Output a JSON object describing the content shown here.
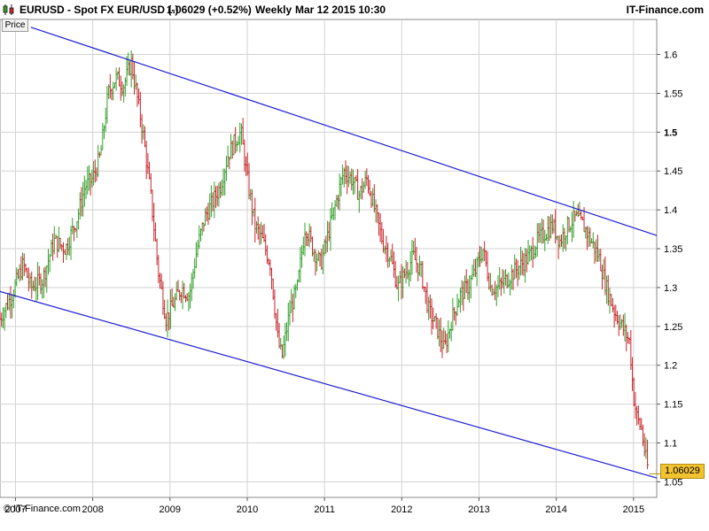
{
  "header": {
    "symbol": "EURUSD - Spot FX EUR/USD (-)",
    "price_change": "1.06029 (+0.52%)",
    "period": "Weekly",
    "datetime": "Mar 12 2015 10:30",
    "brand": "IT-Finance.com",
    "logo_icon": "candlestick-icon"
  },
  "price_button": "Price",
  "copyright": "© IT-Finance.com",
  "last_price_badge": "1.06029",
  "colors": {
    "up": "#34a02c",
    "down": "#c8262b",
    "channel": "#1f1fd4",
    "grid": "#d3d3d3",
    "badge": "#f2c230"
  },
  "chart_data": {
    "type": "ohlc",
    "title": "EURUSD - Spot FX EUR/USD (-)",
    "ylim": [
      1.03,
      1.645
    ],
    "xlim": [
      2006.8,
      2015.3
    ],
    "y_ticks": [
      "1.05",
      "1.1",
      "1.15",
      "1.2",
      "1.25",
      "1.3",
      "1.35",
      "1.4",
      "1.45",
      "1.5",
      "1.55",
      "1.6"
    ],
    "y_tick_bold": "1.5",
    "x_ticks": [
      "2007",
      "2008",
      "2009",
      "2010",
      "2011",
      "2012",
      "2013",
      "2014",
      "2015"
    ],
    "grid": true,
    "last_value": 1.06029,
    "channel_lines": [
      {
        "name": "upper",
        "start": [
          2007.2,
          1.635
        ],
        "end": [
          2015.3,
          1.367
        ]
      },
      {
        "name": "lower",
        "start": [
          2006.8,
          1.295
        ],
        "end": [
          2015.3,
          1.055
        ]
      }
    ],
    "path": [
      [
        2006.8,
        1.26
      ],
      [
        2006.95,
        1.29
      ],
      [
        2007.1,
        1.33
      ],
      [
        2007.2,
        1.3
      ],
      [
        2007.35,
        1.31
      ],
      [
        2007.5,
        1.36
      ],
      [
        2007.65,
        1.35
      ],
      [
        2007.8,
        1.39
      ],
      [
        2007.9,
        1.43
      ],
      [
        2008.0,
        1.44
      ],
      [
        2008.1,
        1.47
      ],
      [
        2008.2,
        1.55
      ],
      [
        2008.3,
        1.57
      ],
      [
        2008.4,
        1.56
      ],
      [
        2008.5,
        1.59
      ],
      [
        2008.55,
        1.56
      ],
      [
        2008.65,
        1.5
      ],
      [
        2008.75,
        1.42
      ],
      [
        2008.85,
        1.32
      ],
      [
        2008.95,
        1.26
      ],
      [
        2009.05,
        1.28
      ],
      [
        2009.15,
        1.3
      ],
      [
        2009.25,
        1.29
      ],
      [
        2009.35,
        1.35
      ],
      [
        2009.45,
        1.39
      ],
      [
        2009.55,
        1.41
      ],
      [
        2009.65,
        1.43
      ],
      [
        2009.75,
        1.47
      ],
      [
        2009.85,
        1.49
      ],
      [
        2009.92,
        1.5
      ],
      [
        2010.0,
        1.44
      ],
      [
        2010.1,
        1.38
      ],
      [
        2010.2,
        1.36
      ],
      [
        2010.3,
        1.33
      ],
      [
        2010.4,
        1.23
      ],
      [
        2010.45,
        1.21
      ],
      [
        2010.55,
        1.27
      ],
      [
        2010.65,
        1.3
      ],
      [
        2010.75,
        1.38
      ],
      [
        2010.85,
        1.35
      ],
      [
        2010.95,
        1.33
      ],
      [
        2011.05,
        1.37
      ],
      [
        2011.15,
        1.41
      ],
      [
        2011.25,
        1.45
      ],
      [
        2011.35,
        1.44
      ],
      [
        2011.45,
        1.42
      ],
      [
        2011.55,
        1.44
      ],
      [
        2011.65,
        1.4
      ],
      [
        2011.75,
        1.36
      ],
      [
        2011.85,
        1.34
      ],
      [
        2011.95,
        1.3
      ],
      [
        2012.05,
        1.32
      ],
      [
        2012.15,
        1.34
      ],
      [
        2012.25,
        1.32
      ],
      [
        2012.35,
        1.27
      ],
      [
        2012.45,
        1.25
      ],
      [
        2012.55,
        1.22
      ],
      [
        2012.65,
        1.26
      ],
      [
        2012.75,
        1.29
      ],
      [
        2012.85,
        1.3
      ],
      [
        2012.95,
        1.32
      ],
      [
        2013.05,
        1.35
      ],
      [
        2013.15,
        1.3
      ],
      [
        2013.25,
        1.3
      ],
      [
        2013.35,
        1.31
      ],
      [
        2013.45,
        1.32
      ],
      [
        2013.55,
        1.33
      ],
      [
        2013.65,
        1.34
      ],
      [
        2013.75,
        1.36
      ],
      [
        2013.85,
        1.37
      ],
      [
        2013.95,
        1.38
      ],
      [
        2014.05,
        1.36
      ],
      [
        2014.15,
        1.38
      ],
      [
        2014.25,
        1.39
      ],
      [
        2014.35,
        1.38
      ],
      [
        2014.45,
        1.36
      ],
      [
        2014.55,
        1.34
      ],
      [
        2014.65,
        1.3
      ],
      [
        2014.75,
        1.27
      ],
      [
        2014.85,
        1.25
      ],
      [
        2014.95,
        1.23
      ],
      [
        2015.0,
        1.16
      ],
      [
        2015.05,
        1.13
      ],
      [
        2015.1,
        1.12
      ],
      [
        2015.15,
        1.085
      ],
      [
        2015.2,
        1.06
      ]
    ]
  }
}
